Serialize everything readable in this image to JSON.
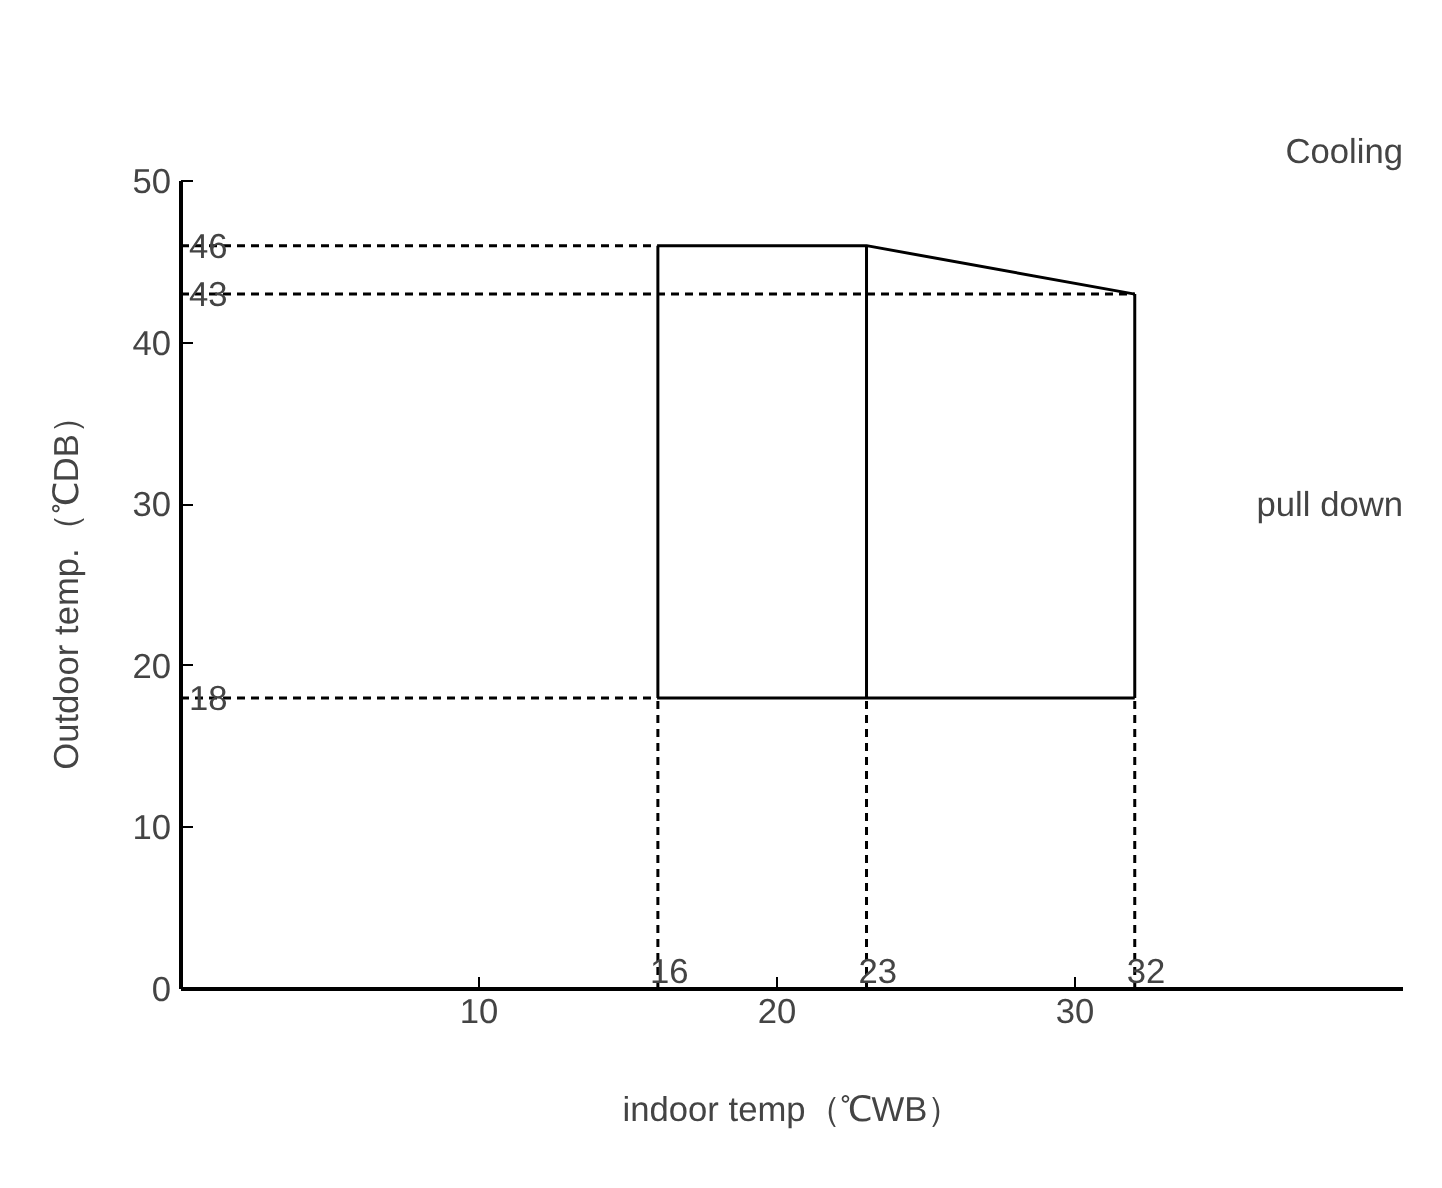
{
  "chart_data": {
    "type": "line",
    "title": "Cooling",
    "xlabel": "indoor temp（℃WB）",
    "ylabel": "Outdoor temp.（℃DB）",
    "xlim": [
      0,
      41
    ],
    "xticks": [
      10,
      20,
      30
    ],
    "ylim": [
      0,
      50
    ],
    "yticks": [
      0,
      10,
      20,
      30,
      40,
      50
    ],
    "grid": false,
    "marker": "none",
    "series": [
      {
        "color": "#000000",
        "line_style": "solid",
        "x": [
          16,
          23,
          32
        ],
        "values": [
          46,
          46,
          43
        ]
      },
      {
        "color": "#000000",
        "line_style": "solid",
        "x": [
          16,
          32
        ],
        "values": [
          18,
          18
        ]
      },
      {
        "color": "#000000",
        "line_style": "solid",
        "x": [
          16,
          16
        ],
        "values": [
          18,
          46
        ]
      },
      {
        "color": "#000000",
        "line_style": "solid",
        "x": [
          23,
          23
        ],
        "values": [
          18,
          46
        ]
      },
      {
        "color": "#000000",
        "line_style": "solid",
        "x": [
          32,
          32
        ],
        "values": [
          18,
          43
        ]
      },
      {
        "color": "#000000",
        "line_style": "dashed",
        "x": [
          0,
          16
        ],
        "values": [
          46,
          46
        ]
      },
      {
        "color": "#000000",
        "line_style": "dashed",
        "x": [
          0,
          32
        ],
        "values": [
          43,
          43
        ]
      },
      {
        "color": "#000000",
        "line_style": "dashed",
        "x": [
          0,
          16
        ],
        "values": [
          18,
          18
        ]
      },
      {
        "color": "#000000",
        "line_style": "dashed",
        "x": [
          16,
          16
        ],
        "values": [
          0,
          18
        ]
      },
      {
        "color": "#000000",
        "line_style": "dashed",
        "x": [
          23,
          23
        ],
        "values": [
          0,
          18
        ]
      },
      {
        "color": "#000000",
        "line_style": "dashed",
        "x": [
          32,
          32
        ],
        "values": [
          0,
          18
        ]
      }
    ],
    "annotations": [
      {
        "text": "46",
        "x": 0,
        "y": 46
      },
      {
        "text": "43",
        "x": 0,
        "y": 43
      },
      {
        "text": "18",
        "x": 0,
        "y": 18
      },
      {
        "text": "16",
        "x": 16,
        "y": 0
      },
      {
        "text": "23",
        "x": 23,
        "y": 0
      },
      {
        "text": "32",
        "x": 32,
        "y": 0
      },
      "pull down"
    ]
  }
}
